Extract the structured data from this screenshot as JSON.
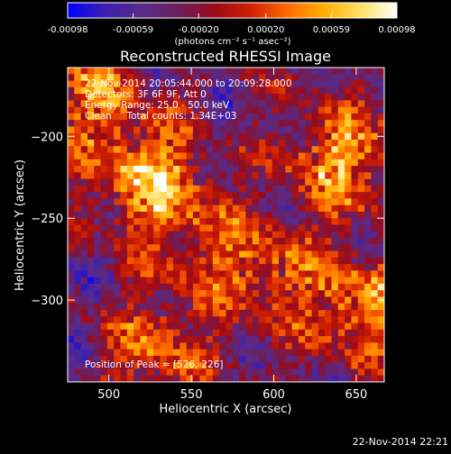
{
  "colorbar": {
    "stops": [
      "#0000ff",
      "#3a1fb0",
      "#5a2a8a",
      "#6a2060",
      "#9a0a1a",
      "#d01f00",
      "#ff6a00",
      "#ffb000",
      "#ffe060",
      "#ffffff"
    ],
    "ticks": [
      "-0.00098",
      "-0.00059",
      "-0.00020",
      "0.00020",
      "0.00059",
      "0.00098"
    ],
    "tick_values": [
      -0.00098,
      -0.00059,
      -0.0002,
      0.0002,
      0.00059,
      0.00098
    ],
    "range": [
      -0.00098,
      0.00098
    ],
    "units_label": "(photons cm⁻² s⁻¹ asec⁻²)"
  },
  "chart_data": {
    "type": "heatmap",
    "title": "Reconstructed RHESSI Image",
    "xlabel": "Heliocentric X (arcsec)",
    "ylabel": "Heliocentric Y (arcsec)",
    "xlim": [
      475,
      667
    ],
    "ylim": [
      -350,
      -158
    ],
    "xticks": [
      500,
      550,
      600,
      650
    ],
    "yticks": [
      -200,
      -250,
      -300
    ],
    "grid": false,
    "annotations": [
      "22-Nov-2014 20:05:44.000 to 20:09:28.000",
      "Detectors: 3F 6F 9F, Att 0",
      "Energy Range: 25.0 - 50.0 keV",
      "Clean     Total counts: 1.34E+03"
    ],
    "peak_label": "Position of Peak = [526,-226]",
    "peak": [
      526,
      -226
    ],
    "grid_cells": 48,
    "bright_regions": [
      {
        "x": 526,
        "y": -226,
        "strength": 1.0
      },
      {
        "x": 640,
        "y": -215,
        "strength": 0.85
      },
      {
        "x": 655,
        "y": -305,
        "strength": 0.8
      },
      {
        "x": 490,
        "y": -175,
        "strength": 0.7
      },
      {
        "x": 530,
        "y": -330,
        "strength": 0.6
      },
      {
        "x": 600,
        "y": -285,
        "strength": 0.55
      },
      {
        "x": 560,
        "y": -270,
        "strength": 0.45
      }
    ]
  },
  "footer": {
    "timestamp": "22-Nov-2014 22:21"
  }
}
